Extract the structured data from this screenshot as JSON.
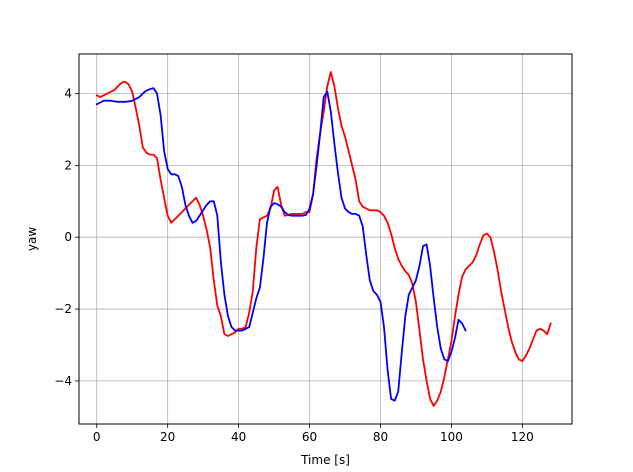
{
  "chart_data": {
    "type": "line",
    "xlabel": "Time [s]",
    "ylabel": "yaw",
    "xlim": [
      -5,
      134
    ],
    "ylim": [
      -5.2,
      5.1
    ],
    "xticks": [
      0,
      20,
      40,
      60,
      80,
      100,
      120
    ],
    "xtick_labels": [
      "0",
      "20",
      "40",
      "60",
      "80",
      "100",
      "120"
    ],
    "yticks": [
      -4,
      -2,
      0,
      2,
      4
    ],
    "ytick_labels": [
      "−4",
      "−2",
      "0",
      "2",
      "4"
    ],
    "grid": true,
    "series": [
      {
        "color": "#ff0000",
        "x": [
          0,
          1,
          3,
          4,
          5,
          6,
          7,
          8,
          9,
          10,
          11,
          12,
          13,
          14,
          15,
          16,
          17,
          18,
          19,
          20,
          21,
          22,
          23,
          24,
          25,
          26,
          27,
          28,
          29,
          30,
          31,
          32,
          33,
          34,
          35,
          36,
          37,
          38,
          39,
          40,
          41,
          42,
          43,
          44,
          45,
          46,
          47,
          48,
          49,
          50,
          51,
          52,
          53,
          54,
          55,
          56,
          57,
          58,
          59,
          60,
          61,
          62,
          63,
          64,
          65,
          66,
          67,
          68,
          69,
          70,
          71,
          72,
          73,
          74,
          75,
          76,
          77,
          78,
          79,
          80,
          81,
          82,
          83,
          84,
          85,
          86,
          87,
          88,
          89,
          90,
          91,
          92,
          93,
          94,
          95,
          96,
          97,
          98,
          99,
          100,
          101,
          102,
          103,
          104,
          105,
          106,
          107,
          108,
          109,
          110,
          111,
          112,
          113,
          114,
          115,
          116,
          117,
          118,
          119,
          120,
          121,
          122,
          123,
          124,
          125,
          126,
          127,
          128
        ],
        "y": [
          3.95,
          3.9,
          4.0,
          4.05,
          4.1,
          4.2,
          4.3,
          4.33,
          4.25,
          4.05,
          3.6,
          3.1,
          2.5,
          2.35,
          2.3,
          2.3,
          2.2,
          1.6,
          1.1,
          0.6,
          0.4,
          0.5,
          0.6,
          0.7,
          0.8,
          0.9,
          1.0,
          1.1,
          0.9,
          0.6,
          0.2,
          -0.3,
          -1.2,
          -1.9,
          -2.2,
          -2.7,
          -2.75,
          -2.7,
          -2.65,
          -2.55,
          -2.55,
          -2.5,
          -2.1,
          -1.5,
          -0.3,
          0.5,
          0.55,
          0.6,
          0.8,
          1.3,
          1.4,
          0.9,
          0.6,
          0.62,
          0.65,
          0.65,
          0.65,
          0.65,
          0.7,
          0.7,
          1.2,
          2.2,
          2.9,
          3.5,
          4.2,
          4.6,
          4.2,
          3.6,
          3.1,
          2.8,
          2.4,
          2.0,
          1.6,
          1.0,
          0.85,
          0.8,
          0.75,
          0.75,
          0.75,
          0.7,
          0.6,
          0.4,
          0.1,
          -0.3,
          -0.6,
          -0.8,
          -0.95,
          -1.05,
          -1.3,
          -1.8,
          -2.6,
          -3.4,
          -4.0,
          -4.5,
          -4.7,
          -4.55,
          -4.3,
          -3.9,
          -3.4,
          -2.9,
          -2.2,
          -1.6,
          -1.1,
          -0.9,
          -0.8,
          -0.7,
          -0.5,
          -0.2,
          0.05,
          0.1,
          0.0,
          -0.4,
          -0.9,
          -1.5,
          -2.0,
          -2.5,
          -2.9,
          -3.2,
          -3.4,
          -3.45,
          -3.3,
          -3.1,
          -2.85,
          -2.6,
          -2.55,
          -2.6,
          -2.7,
          -2.4
        ]
      },
      {
        "color": "#0000ff",
        "x": [
          0,
          1,
          2,
          3,
          4,
          5,
          6,
          7,
          8,
          9,
          10,
          11,
          12,
          13,
          14,
          15,
          16,
          17,
          18,
          19,
          20,
          21,
          22,
          23,
          24,
          25,
          26,
          27,
          28,
          29,
          30,
          31,
          32,
          33,
          34,
          35,
          36,
          37,
          38,
          39,
          40,
          41,
          42,
          43,
          44,
          45,
          46,
          47,
          48,
          49,
          50,
          51,
          52,
          53,
          54,
          55,
          56,
          57,
          58,
          59,
          60,
          61,
          62,
          63,
          64,
          65,
          66,
          67,
          68,
          69,
          70,
          71,
          72,
          73,
          74,
          75,
          76,
          77,
          78,
          79,
          80,
          81,
          82,
          83,
          84,
          85,
          86,
          87,
          88,
          89,
          90,
          91,
          92,
          93,
          94,
          95,
          96,
          97,
          98,
          99,
          100,
          101,
          102,
          103,
          104
        ],
        "y": [
          3.7,
          3.75,
          3.8,
          3.8,
          3.8,
          3.78,
          3.77,
          3.77,
          3.77,
          3.78,
          3.8,
          3.85,
          3.9,
          4.0,
          4.08,
          4.12,
          4.15,
          4.0,
          3.4,
          2.4,
          1.9,
          1.75,
          1.75,
          1.7,
          1.4,
          0.9,
          0.6,
          0.4,
          0.45,
          0.6,
          0.75,
          0.9,
          1.0,
          1.0,
          0.6,
          -0.7,
          -1.6,
          -2.2,
          -2.5,
          -2.6,
          -2.6,
          -2.6,
          -2.55,
          -2.5,
          -2.1,
          -1.7,
          -1.4,
          -0.6,
          0.4,
          0.85,
          0.95,
          0.92,
          0.85,
          0.7,
          0.62,
          0.6,
          0.6,
          0.6,
          0.6,
          0.62,
          0.8,
          1.2,
          2.0,
          2.9,
          3.9,
          4.05,
          3.5,
          2.6,
          1.8,
          1.1,
          0.8,
          0.7,
          0.65,
          0.65,
          0.6,
          0.3,
          -0.5,
          -1.2,
          -1.5,
          -1.6,
          -1.8,
          -2.5,
          -3.7,
          -4.5,
          -4.55,
          -4.3,
          -3.2,
          -2.2,
          -1.6,
          -1.4,
          -1.2,
          -0.8,
          -0.25,
          -0.2,
          -0.8,
          -1.7,
          -2.5,
          -3.1,
          -3.4,
          -3.45,
          -3.2,
          -2.8,
          -2.3,
          -2.4,
          -2.6
        ]
      }
    ]
  }
}
